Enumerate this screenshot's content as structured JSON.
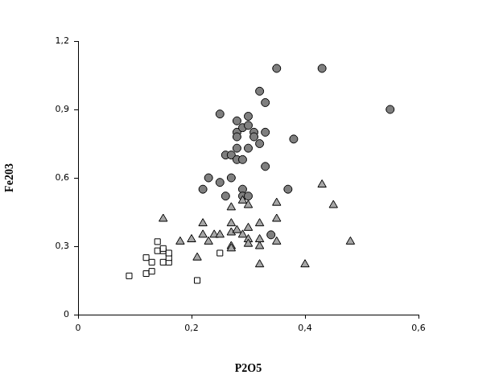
{
  "chart_data": {
    "type": "scatter",
    "x_label": "P2O5",
    "y_label": "Fe203",
    "xlim": [
      0,
      0.6
    ],
    "xticks": [
      0,
      {
        "value": 0.2,
        "label": "0,2"
      },
      {
        "value": 0.4,
        "label": "0,4"
      },
      {
        "value": 0.6,
        "label": "0,6"
      }
    ],
    "ylim": [
      0,
      1.2
    ],
    "yticks": [
      0,
      {
        "value": 0.3,
        "label": "0,3"
      },
      {
        "value": 0.6,
        "label": "0,6"
      },
      {
        "value": 0.9,
        "label": "0,9"
      },
      {
        "value": 1.2,
        "label": "1,2"
      }
    ],
    "grid": false,
    "series": [
      {
        "color": "#ffffff",
        "marker": "square",
        "x": [
          0.09,
          0.12,
          0.12,
          0.13,
          0.13,
          0.14,
          0.14,
          0.15,
          0.15,
          0.15,
          0.16,
          0.16,
          0.16,
          0.21,
          0.25
        ],
        "values": [
          0.17,
          0.18,
          0.25,
          0.19,
          0.23,
          0.28,
          0.32,
          0.23,
          0.28,
          0.29,
          0.23,
          0.25,
          0.27,
          0.15,
          0.27
        ]
      },
      {
        "color": "#a6a6a6",
        "marker": "triangle",
        "x": [
          0.15,
          0.18,
          0.2,
          0.21,
          0.22,
          0.22,
          0.23,
          0.24,
          0.25,
          0.27,
          0.27,
          0.27,
          0.27,
          0.27,
          0.28,
          0.29,
          0.29,
          0.3,
          0.3,
          0.3,
          0.3,
          0.32,
          0.32,
          0.32,
          0.32,
          0.35,
          0.35,
          0.35,
          0.4,
          0.43,
          0.45,
          0.48
        ],
        "values": [
          0.42,
          0.32,
          0.33,
          0.25,
          0.35,
          0.4,
          0.32,
          0.35,
          0.35,
          0.47,
          0.4,
          0.36,
          0.3,
          0.29,
          0.37,
          0.5,
          0.35,
          0.48,
          0.38,
          0.33,
          0.31,
          0.4,
          0.33,
          0.3,
          0.22,
          0.49,
          0.42,
          0.32,
          0.22,
          0.57,
          0.48,
          0.32
        ]
      },
      {
        "color": "#7f7f7f",
        "marker": "circle",
        "x": [
          0.22,
          0.23,
          0.25,
          0.25,
          0.26,
          0.26,
          0.27,
          0.27,
          0.28,
          0.28,
          0.28,
          0.28,
          0.28,
          0.29,
          0.29,
          0.29,
          0.29,
          0.3,
          0.3,
          0.3,
          0.3,
          0.31,
          0.31,
          0.32,
          0.32,
          0.33,
          0.33,
          0.33,
          0.34,
          0.35,
          0.37,
          0.38,
          0.43,
          0.55
        ],
        "values": [
          0.55,
          0.6,
          0.88,
          0.58,
          0.52,
          0.7,
          0.7,
          0.6,
          0.85,
          0.8,
          0.78,
          0.73,
          0.68,
          0.82,
          0.68,
          0.55,
          0.52,
          0.87,
          0.83,
          0.73,
          0.52,
          0.8,
          0.78,
          0.98,
          0.75,
          0.93,
          0.8,
          0.65,
          0.35,
          1.08,
          0.55,
          0.77,
          1.08,
          0.9
        ]
      }
    ]
  }
}
